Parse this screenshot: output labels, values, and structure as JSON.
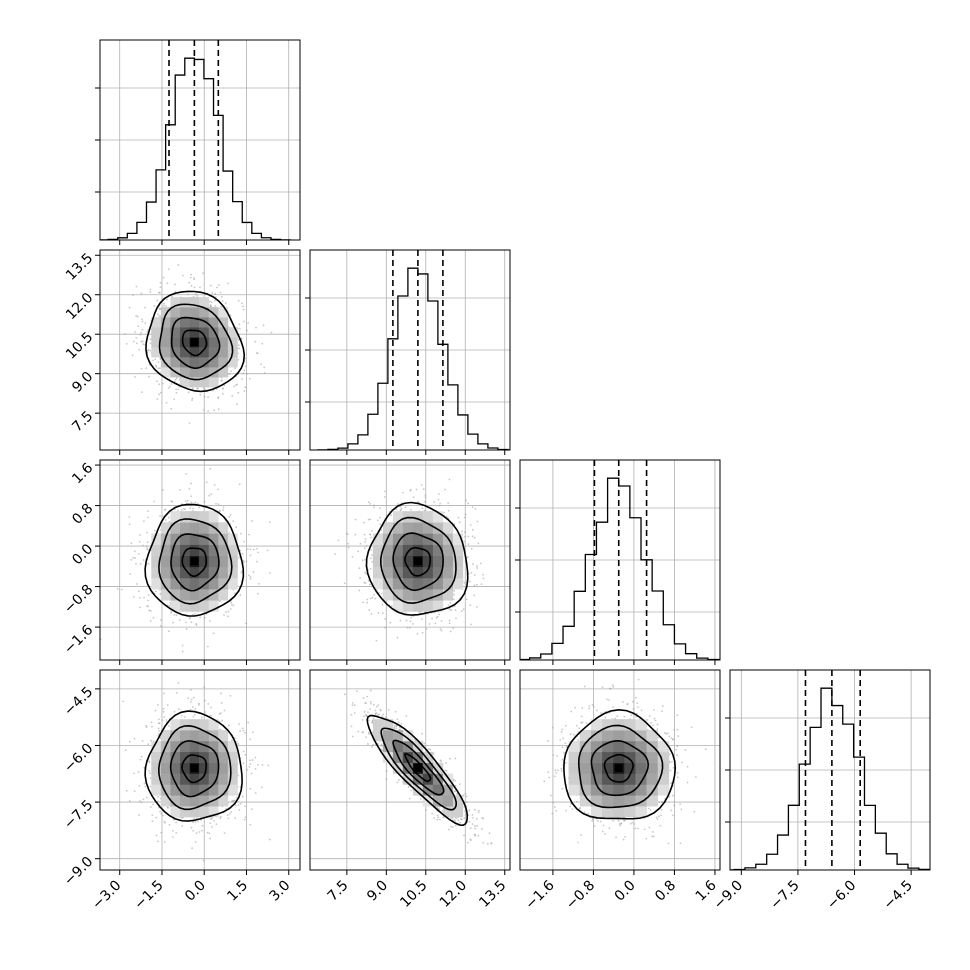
{
  "chart_data": {
    "type": "corner",
    "n_params": 4,
    "title": "",
    "grid": true,
    "axis_labels": [
      "",
      "",
      "",
      ""
    ],
    "ranges": [
      [
        -3.7,
        3.4
      ],
      [
        6.1,
        13.7
      ],
      [
        -2.25,
        1.7
      ],
      [
        -9.3,
        -4.0
      ]
    ],
    "x_ticks": [
      [
        "−3.0",
        "−1.5",
        "0.0",
        "1.5",
        "3.0"
      ],
      [
        "7.5",
        "9.0",
        "10.5",
        "12.0",
        "13.5"
      ],
      [
        "−1.6",
        "−0.8",
        "0.0",
        "0.8",
        "1.6"
      ],
      [
        "−9.0",
        "−7.5",
        "−6.0",
        "−4.5"
      ]
    ],
    "y_ticks": [
      [],
      [
        "7.5",
        "9.0",
        "10.5",
        "12.0",
        "13.5"
      ],
      [
        "−1.6",
        "−0.8",
        "0.0",
        "0.8",
        "1.6"
      ],
      [
        "−9.0",
        "−7.5",
        "−6.0",
        "−4.5"
      ]
    ],
    "marginals": [
      {
        "mean": -0.35,
        "std": 0.85,
        "quantiles": [
          -1.25,
          -0.35,
          0.5
        ]
      },
      {
        "mean": 10.2,
        "std": 0.95,
        "quantiles": [
          9.25,
          10.2,
          11.15
        ]
      },
      {
        "mean": -0.3,
        "std": 0.55,
        "quantiles": [
          -0.78,
          -0.3,
          0.25
        ]
      },
      {
        "mean": -6.6,
        "std": 0.72,
        "quantiles": [
          -7.3,
          -6.6,
          -5.85
        ]
      }
    ],
    "correlations": [
      [
        1.0,
        -0.12,
        0.0,
        0.0
      ],
      [
        -0.12,
        1.0,
        -0.05,
        -0.88
      ],
      [
        0.0,
        -0.05,
        1.0,
        0.0
      ],
      [
        0.0,
        -0.88,
        0.0,
        1.0
      ]
    ],
    "samples_per_panel": 1200,
    "histogram_bins": 20,
    "contour_levels_sigma": [
      0.5,
      1.0,
      1.5,
      2.0
    ],
    "colors": {
      "line": "#000000",
      "grid": "#b0b0b0",
      "points": "#9a9a9a",
      "quantile": "#000000"
    }
  }
}
